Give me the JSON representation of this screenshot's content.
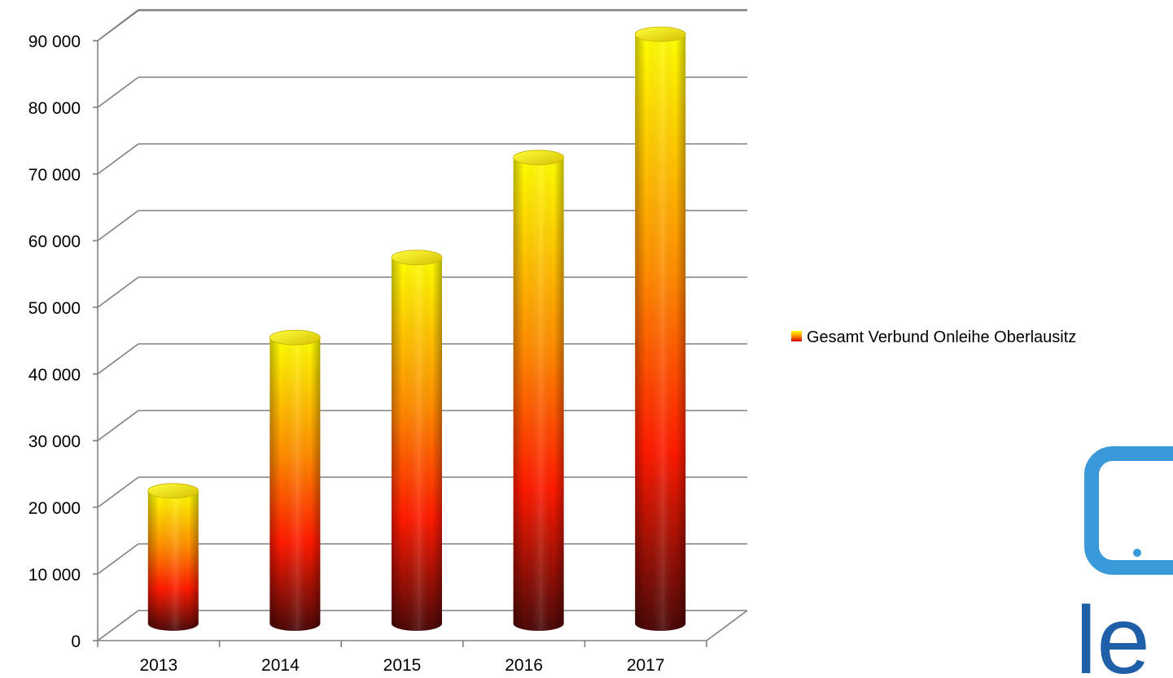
{
  "chart_data": {
    "type": "bar",
    "style": "3d-cylinder",
    "categories": [
      "2013",
      "2014",
      "2015",
      "2016",
      "2017"
    ],
    "series": [
      {
        "name": "Gesamt Verbund Onleihe Oberlausitz",
        "values": [
          21000,
          44000,
          56000,
          71000,
          89500
        ]
      }
    ],
    "y_tick_labels": [
      "0",
      "10 000",
      "20 000",
      "30 000",
      "40 000",
      "50 000",
      "60 000",
      "70 000",
      "80 000",
      "90 000"
    ],
    "ylim": [
      0,
      90000
    ],
    "title": "",
    "xlabel": "",
    "ylabel": "",
    "grid": true,
    "legend_position": "right",
    "colors": {
      "bar_top": "#ffff00",
      "bar_upper": "#ffc000",
      "bar_mid": "#ff7a00",
      "bar_low": "#ff1a00",
      "bar_bottom": "#5a0a0a",
      "grid": "#808080",
      "axis": "#808080"
    }
  },
  "logo": {
    "text": "le",
    "color": "#1f5fa8",
    "frame_color": "#3a9ad9"
  }
}
